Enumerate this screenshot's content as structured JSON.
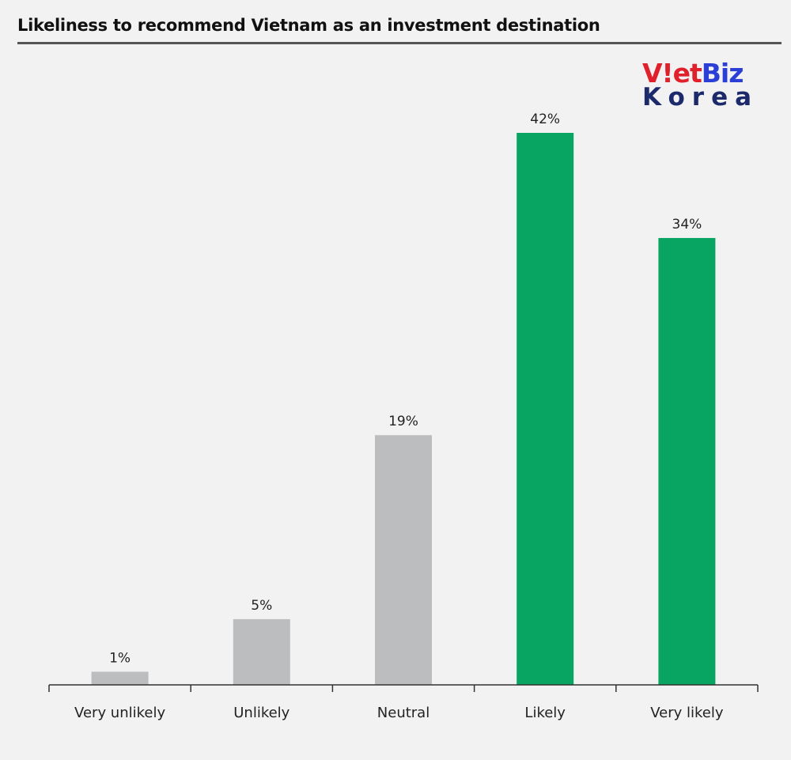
{
  "title": "Likeliness to recommend Vietnam as an investment destination",
  "logo": {
    "line1_part1": "V",
    "line1_part2": "!",
    "line1_part3": "et",
    "line1_part4": "Biz",
    "line2": "Korea",
    "colors": {
      "red": "#e0202a",
      "blue": "#2b3fd6",
      "navy": "#1c2a6b"
    }
  },
  "colors": {
    "background": "#f2f2f2",
    "negative_neutral": "#bcbdbf",
    "positive": "#07a561",
    "axis": "#333333"
  },
  "chart_data": {
    "type": "bar",
    "title": "Likeliness to recommend Vietnam as an investment destination",
    "xlabel": "",
    "ylabel": "",
    "categories": [
      "Very unlikely",
      "Unlikely",
      "Neutral",
      "Likely",
      "Very likely"
    ],
    "values": [
      1,
      5,
      19,
      42,
      34
    ],
    "data_labels": [
      "1%",
      "5%",
      "19%",
      "42%",
      "34%"
    ],
    "bar_colors": [
      "#bcbdbf",
      "#bcbdbf",
      "#bcbdbf",
      "#07a561",
      "#07a561"
    ],
    "ylim": [
      0,
      42
    ],
    "unit": "%",
    "grid": false,
    "legend": "none"
  }
}
